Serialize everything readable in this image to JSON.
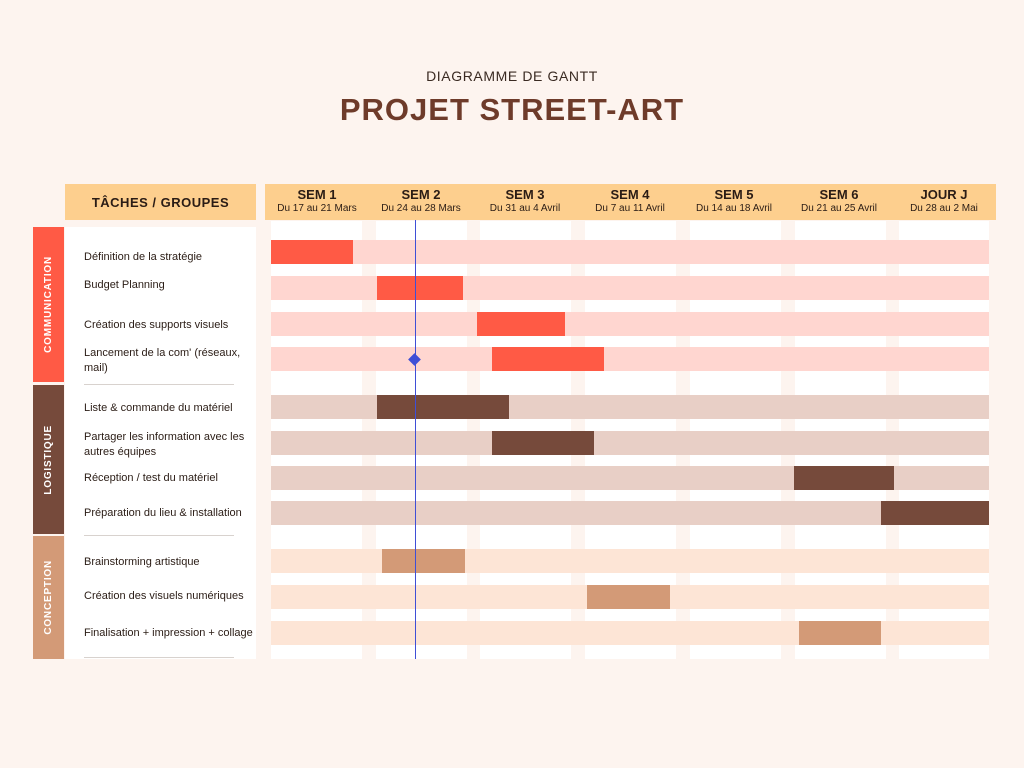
{
  "header": {
    "subtitle": "DIAGRAMME DE GANTT",
    "title": "PROJET STREET-ART",
    "tasks_label": "TÂCHES / GROUPES"
  },
  "colors": {
    "background": "#fdf4ef",
    "header_fill": "#fdcf8e",
    "title": "#6e3b2a",
    "today_line": "#3f4fd6"
  },
  "chart_data": {
    "type": "gantt",
    "title": "PROJET STREET-ART",
    "subtitle": "DIAGRAMME DE GANTT",
    "unit": "semaine",
    "xlim": [
      0,
      7
    ],
    "weeks": [
      {
        "label": "SEM 1",
        "dates": "Du 17 au 21 Mars"
      },
      {
        "label": "SEM 2",
        "dates": "Du 24 au 28 Mars"
      },
      {
        "label": "SEM 3",
        "dates": "Du 31 au 4 Avril"
      },
      {
        "label": "SEM 4",
        "dates": "Du 7 au 11 Avril"
      },
      {
        "label": "SEM 5",
        "dates": "Du 14 au 18 Avril"
      },
      {
        "label": "SEM 6",
        "dates": "Du 21 au 25 Avril"
      },
      {
        "label": "JOUR J",
        "dates": "Du 28 au 2 Mai"
      }
    ],
    "today_week": 1.4,
    "groups": [
      {
        "name": "COMMUNICATION",
        "color": "#ff5a45",
        "track_color": "#ffd6d0",
        "tasks": [
          {
            "label": "Définition de la stratégie",
            "start": 0.0,
            "end": 0.8
          },
          {
            "label": "Budget Planning",
            "start": 1.03,
            "end": 1.87
          },
          {
            "label": "Création des supports visuels",
            "start": 2.01,
            "end": 2.87
          },
          {
            "label": "Lancement de la com' (réseaux, mail)",
            "start": 2.15,
            "end": 3.25,
            "milestone": 1.4
          }
        ]
      },
      {
        "name": "LOGISTIQUE",
        "color": "#764a3b",
        "track_color": "#e8cfc6",
        "tasks": [
          {
            "label": "Liste & commande du matériel",
            "start": 1.03,
            "end": 2.32
          },
          {
            "label": "Partager les information avec les autres équipes",
            "start": 2.15,
            "end": 3.15
          },
          {
            "label": "Réception / test du matériel",
            "start": 5.1,
            "end": 6.07
          },
          {
            "label": "Préparation du lieu & installation",
            "start": 5.95,
            "end": 7.0
          }
        ]
      },
      {
        "name": "CONCEPTION",
        "color": "#d39a77",
        "track_color": "#fde5d6",
        "tasks": [
          {
            "label": "Brainstorming artistique",
            "start": 1.08,
            "end": 1.89
          },
          {
            "label": "Création des visuels numériques",
            "start": 3.08,
            "end": 3.89
          },
          {
            "label": "Finalisation + impression + collage",
            "start": 5.15,
            "end": 5.95
          }
        ]
      }
    ]
  }
}
